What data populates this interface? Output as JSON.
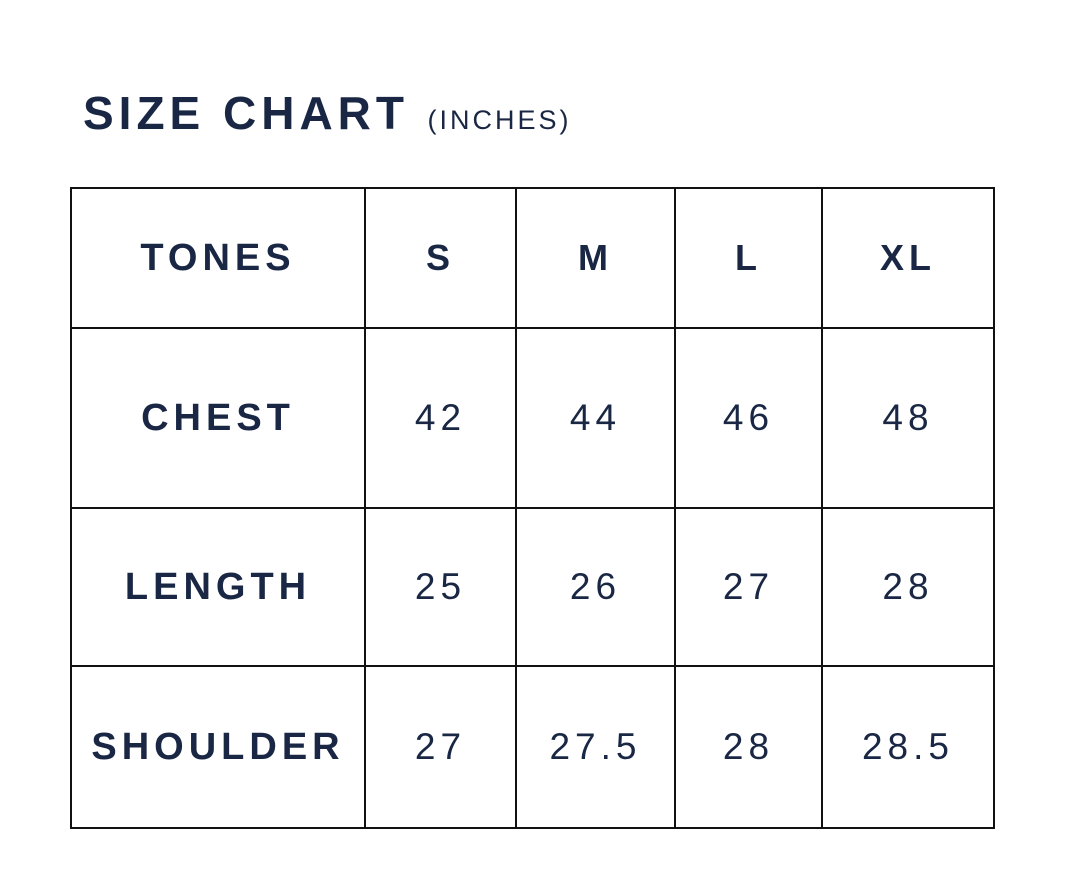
{
  "title": {
    "main": "SIZE CHART",
    "unit": "(INCHES)"
  },
  "table": {
    "header_label": "TONES",
    "sizes": [
      "S",
      "M",
      "L",
      "XL"
    ],
    "rows": [
      {
        "label": "CHEST",
        "values": [
          "42",
          "44",
          "46",
          "48"
        ]
      },
      {
        "label": "LENGTH",
        "values": [
          "25",
          "26",
          "27",
          "28"
        ]
      },
      {
        "label": "SHOULDER",
        "values": [
          "27",
          "27.5",
          "28",
          "28.5"
        ]
      }
    ]
  },
  "colors": {
    "text": "#1a2744",
    "border": "#111111",
    "background": "#ffffff"
  }
}
